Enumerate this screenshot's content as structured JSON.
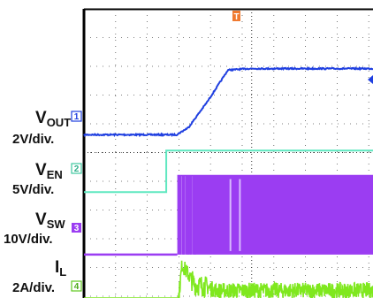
{
  "chart_data": {
    "type": "line",
    "title": "",
    "grid": true,
    "trigger_marker": "T",
    "channels": [
      {
        "id": "1",
        "name_main": "V",
        "name_sub": "OUT",
        "scale": "2V/div.",
        "color": "#1f3fe0",
        "ground_div": 4.38,
        "time_div": [
          0,
          1.5,
          2.93,
          3.3,
          3.9,
          4.55,
          5.2,
          10
        ],
        "level_div": [
          0,
          0,
          0,
          0.25,
          1.15,
          2.25,
          2.3,
          2.3
        ]
      },
      {
        "id": "2",
        "name_main": "V",
        "name_sub": "EN",
        "scale": "5V/div.",
        "color": "#5fe8c0",
        "ground_div": 6.38,
        "time_div": [
          0,
          2.6,
          2.6,
          10
        ],
        "level_div": [
          0,
          0,
          1.45,
          1.45
        ]
      },
      {
        "id": "3",
        "name_main": "V",
        "name_sub": "SW",
        "scale": "10V/div.",
        "color": "#9b3df2",
        "ground_div": 8.55,
        "time_div": [
          0,
          2.95,
          10
        ],
        "switch_level_div": 2.75
      },
      {
        "id": "4",
        "name_main": "I",
        "name_sub": "L",
        "scale": "2A/div.",
        "color": "#7fe81e",
        "ground_div": 10.8,
        "time_div": [
          0,
          2.92,
          3.1,
          3.5,
          3.8,
          4.2,
          10
        ],
        "level_div": [
          0,
          0,
          1.9,
          1.2,
          1.15,
          1.0,
          1.0
        ]
      }
    ]
  }
}
